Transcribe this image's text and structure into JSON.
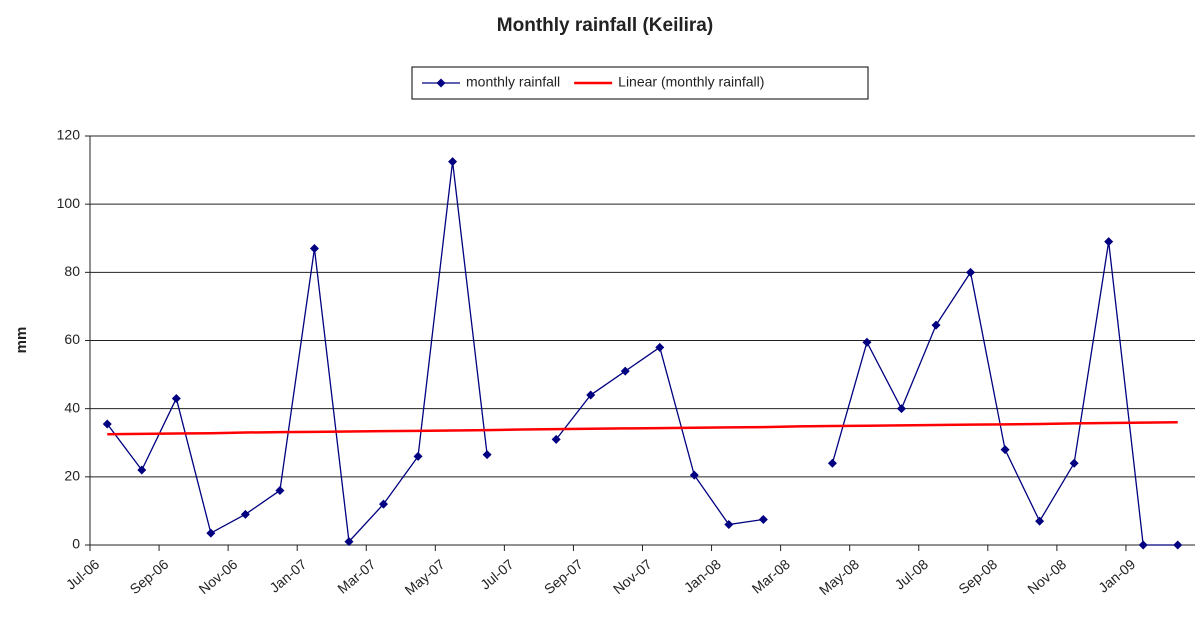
{
  "chart_data": {
    "type": "line",
    "title": "Monthly rainfall (Keilira)",
    "y_label": "mm",
    "categories": [
      "Jul-06",
      null,
      "Sep-06",
      null,
      "Nov-06",
      null,
      "Jan-07",
      null,
      "Mar-07",
      null,
      "May-07",
      null,
      "Jul-07",
      null,
      "Sep-07",
      null,
      "Nov-07",
      null,
      "Jan-08",
      null,
      "Mar-08",
      null,
      "May-08",
      null,
      "Jul-08",
      null,
      "Sep-08",
      null,
      "Nov-08",
      null,
      "Jan-09",
      null
    ],
    "series": [
      {
        "name": "monthly rainfall",
        "color": "#000080",
        "marker": "diamond",
        "values": [
          35.5,
          22,
          43,
          3.5,
          9,
          16,
          87,
          1,
          12,
          26,
          112.5,
          26.5,
          null,
          31,
          44,
          51,
          58,
          20.5,
          6,
          7.5,
          null,
          24,
          59.5,
          40,
          64.5,
          80,
          28,
          7,
          24,
          89,
          0,
          0
        ]
      },
      {
        "name": "Linear (monthly rainfall)",
        "color": "#ff0000",
        "marker": "none",
        "values": [
          32.5,
          32.6,
          32.7,
          32.8,
          33.0,
          33.1,
          33.2,
          33.3,
          33.4,
          33.5,
          33.6,
          33.7,
          33.9,
          34.0,
          34.1,
          34.2,
          34.3,
          34.4,
          34.5,
          34.6,
          34.8,
          34.9,
          35.0,
          35.1,
          35.2,
          35.3,
          35.4,
          35.5,
          35.7,
          35.8,
          35.9,
          36.0
        ]
      }
    ],
    "ylim": [
      0,
      120
    ],
    "yticks": [
      0,
      20,
      40,
      60,
      80,
      100,
      120
    ],
    "grid": true,
    "legend": "top"
  }
}
